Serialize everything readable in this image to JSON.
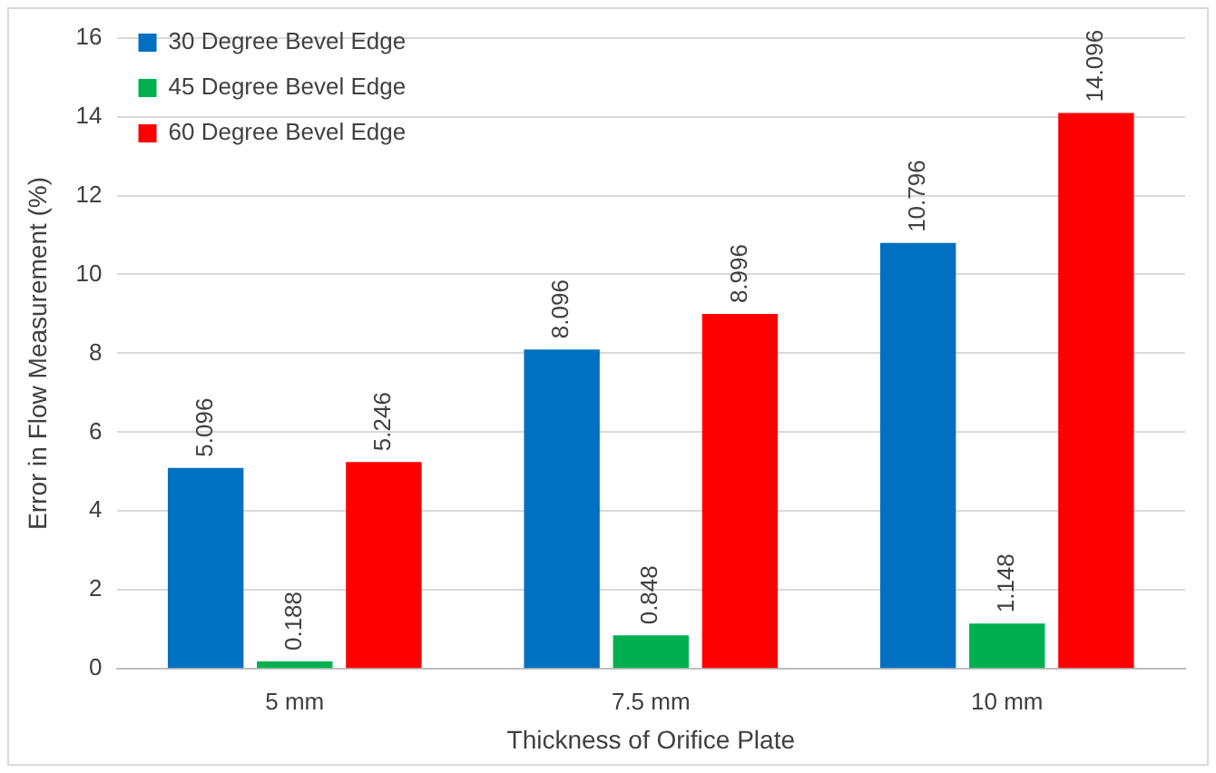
{
  "chart_data": {
    "type": "bar",
    "xlabel": "Thickness of Orifice Plate",
    "ylabel": "Error in Flow Measurement (%)",
    "categories": [
      "5 mm",
      "7.5 mm",
      "10 mm"
    ],
    "series": [
      {
        "name": "30 Degree Bevel Edge",
        "color": "#0070c0",
        "values": [
          5.096,
          8.096,
          10.796
        ]
      },
      {
        "name": "45 Degree Bevel Edge",
        "color": "#00b050",
        "values": [
          0.188,
          0.848,
          1.148
        ]
      },
      {
        "name": "60 Degree Bevel Edge",
        "color": "#ff0000",
        "values": [
          5.246,
          8.996,
          14.096
        ]
      }
    ],
    "ylim": [
      0,
      16
    ],
    "yticks": [
      0,
      2,
      4,
      6,
      8,
      10,
      12,
      14,
      16
    ],
    "grid": "y",
    "legend": "top left",
    "data_labels": true
  }
}
